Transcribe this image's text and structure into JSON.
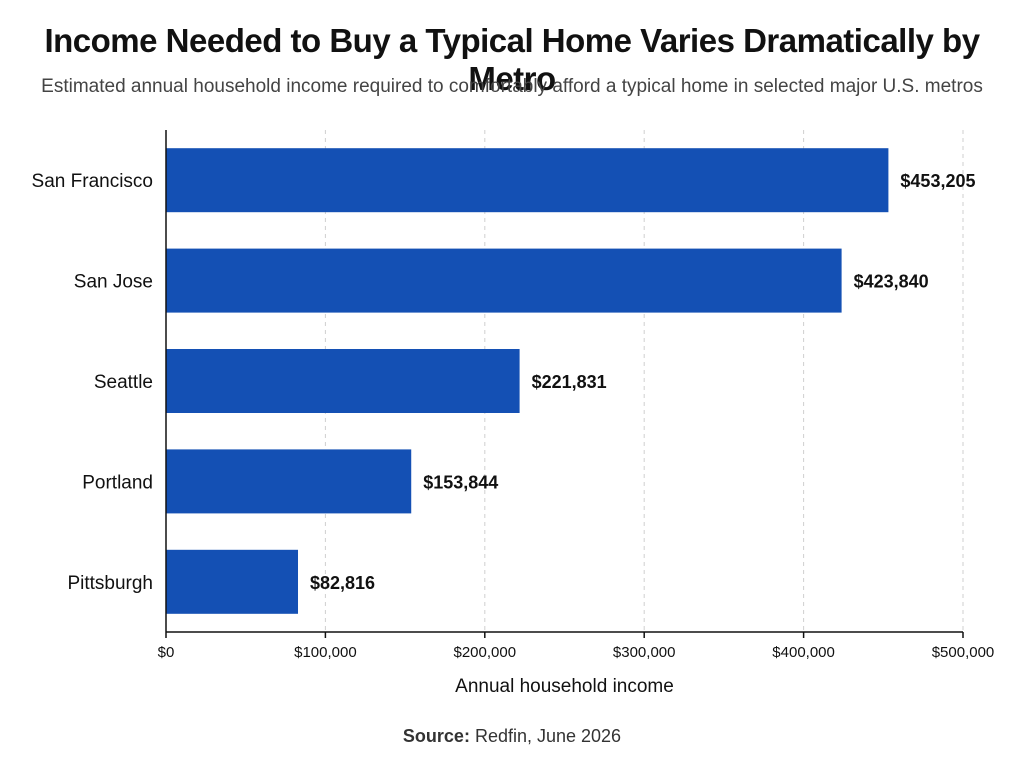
{
  "chart_data": {
    "type": "bar",
    "orientation": "horizontal",
    "title": "Income Needed to Buy a Typical Home Varies Dramatically by Metro",
    "subtitle": "Estimated annual household income required to comfortably afford a typical home in selected major U.S. metros",
    "xlabel": "Annual household income",
    "categories": [
      "San Francisco",
      "San Jose",
      "Seattle",
      "Portland",
      "Pittsburgh"
    ],
    "values": [
      453205,
      423840,
      221831,
      153844,
      82816
    ],
    "data_labels": [
      "$453,205",
      "$423,840",
      "$221,831",
      "$153,844",
      "$82,816"
    ],
    "xlim": [
      0,
      500000
    ],
    "x_ticks": [
      0,
      100000,
      200000,
      300000,
      400000,
      500000
    ],
    "x_tick_labels": [
      "$0",
      "$100,000",
      "$200,000",
      "$300,000",
      "$400,000",
      "$500,000"
    ],
    "grid": "vertical dashed",
    "bar_color": "#1450B4"
  },
  "source": {
    "label": "Source:",
    "text": " Redfin, June 2026"
  }
}
